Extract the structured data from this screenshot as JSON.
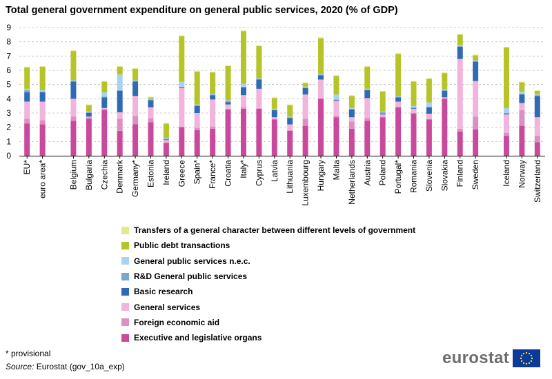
{
  "chart_data": {
    "type": "bar",
    "stacked": true,
    "title": "Total general government expenditure on general public services, 2020 (% of GDP)",
    "xlabel": "",
    "ylabel": "",
    "ylim": [
      0,
      9
    ],
    "yticks": [
      0,
      1,
      2,
      3,
      4,
      5,
      6,
      7,
      8,
      9
    ],
    "grid": "horizontal dashed",
    "categories": [
      "EU*",
      "euro area*",
      "",
      "Belgium",
      "Bulgaria",
      "Czechia",
      "Denmark",
      "Germany*",
      "Estonia",
      "Ireland",
      "Greece",
      "Spain*",
      "France*",
      "Croatia",
      "Italy*",
      "Cyprus",
      "Latvia",
      "Lithuania",
      "Luxembourg",
      "Hungary",
      "Malta",
      "Netherlands",
      "Austria",
      "Poland",
      "Portugal*",
      "Romania",
      "Slovenia",
      "Slovakia",
      "Finland",
      "Sweden",
      "",
      "Iceland",
      "Norway",
      "Switzerland"
    ],
    "series": [
      {
        "name": "Executive and legislative organs",
        "color": "#c94a9d",
        "values": [
          2.25,
          2.2,
          null,
          2.45,
          2.6,
          3.2,
          1.75,
          2.2,
          2.35,
          0.9,
          2.0,
          1.8,
          1.9,
          3.25,
          3.3,
          3.3,
          2.55,
          1.75,
          2.1,
          4.0,
          2.7,
          1.9,
          2.45,
          2.7,
          3.4,
          2.95,
          2.55,
          4.0,
          1.7,
          1.85,
          null,
          1.4,
          2.1,
          0.95
        ]
      },
      {
        "name": "Foreign economic aid",
        "color": "#dc8fc3",
        "values": [
          0.35,
          0.3,
          null,
          0.3,
          0.1,
          0.1,
          0.85,
          0.6,
          0.3,
          0.05,
          0.05,
          0.15,
          0.15,
          0.05,
          0.1,
          0.05,
          0.05,
          0.05,
          0.5,
          0.05,
          0.1,
          0.5,
          0.2,
          0.05,
          0.05,
          0.05,
          0.05,
          0.05,
          0.2,
          0.9,
          null,
          0.2,
          1.1,
          0.45
        ]
      },
      {
        "name": "General services",
        "color": "#f2b3dc",
        "values": [
          1.2,
          1.3,
          null,
          1.25,
          0.05,
          0.05,
          0.45,
          1.4,
          0.75,
          0.15,
          2.7,
          1.05,
          1.9,
          0.3,
          0.85,
          1.35,
          0.1,
          0.4,
          1.7,
          1.3,
          1.05,
          0.3,
          1.4,
          0.15,
          0.35,
          0.3,
          0.35,
          0.05,
          4.9,
          2.5,
          null,
          1.3,
          0.5,
          1.3
        ]
      },
      {
        "name": "Basic research",
        "color": "#2e6bb3",
        "values": [
          0.65,
          0.65,
          null,
          1.2,
          0.25,
          0.75,
          1.5,
          1.0,
          0.5,
          0.05,
          0.05,
          0.5,
          0.3,
          0.15,
          0.55,
          0.65,
          0.5,
          0.45,
          0.45,
          0.3,
          0.05,
          0.55,
          0.55,
          0.05,
          0.3,
          0.05,
          0.45,
          0.45,
          0.85,
          1.35,
          null,
          0.05,
          0.6,
          1.5
        ]
      },
      {
        "name": "R&D General public services",
        "color": "#7ca6d2",
        "values": [
          0.15,
          0.05,
          null,
          0.05,
          0.05,
          0.05,
          0.05,
          0.05,
          0.05,
          0.05,
          0.05,
          0.05,
          0.05,
          0.1,
          0.05,
          0.05,
          0.05,
          0.05,
          0.05,
          0.05,
          0.05,
          0.05,
          0.05,
          0.1,
          0.05,
          0.05,
          0.05,
          0.05,
          0.05,
          0.05,
          null,
          0.05,
          0.05,
          0.05
        ]
      },
      {
        "name": "General public services n.e.c.",
        "color": "#a9d1f0",
        "values": [
          0.1,
          0.1,
          null,
          0.05,
          0.05,
          0.3,
          1.1,
          0.05,
          0.05,
          0.05,
          0.35,
          0.05,
          0.05,
          0.05,
          0.2,
          0.05,
          0.05,
          0.05,
          0.05,
          0.05,
          0.35,
          0.05,
          0.05,
          0.05,
          0.05,
          0.1,
          0.3,
          0.05,
          0.05,
          0.05,
          null,
          0.35,
          0.15,
          0.05
        ]
      },
      {
        "name": "Public debt transactions",
        "color": "#b5c427",
        "values": [
          1.5,
          1.65,
          null,
          2.05,
          0.45,
          0.75,
          0.55,
          0.8,
          0.1,
          1.0,
          3.2,
          2.3,
          1.5,
          2.4,
          3.7,
          2.25,
          0.75,
          0.8,
          0.25,
          2.5,
          1.3,
          0.85,
          1.55,
          1.4,
          2.95,
          1.7,
          1.65,
          1.15,
          0.75,
          0.35,
          null,
          4.25,
          0.65,
          0.25
        ]
      },
      {
        "name": "Transfers of a general character between different levels of government",
        "color": "#e3ea8c",
        "values": [
          0.05,
          0.05,
          null,
          0.05,
          0.05,
          0.05,
          0.05,
          0.05,
          0.05,
          0.05,
          0.05,
          0.05,
          0.05,
          0.05,
          0.05,
          0.05,
          0.05,
          0.05,
          0.05,
          0.05,
          0.05,
          0.05,
          0.05,
          0.05,
          0.05,
          0.05,
          0.05,
          0.05,
          0.05,
          0.05,
          null,
          0.05,
          0.05,
          0.05
        ]
      }
    ]
  },
  "footnote": "* provisional",
  "source": {
    "label": "Source:",
    "text": "Eurostat (gov_10a_exp)"
  },
  "logo": {
    "text": "eurostat"
  }
}
